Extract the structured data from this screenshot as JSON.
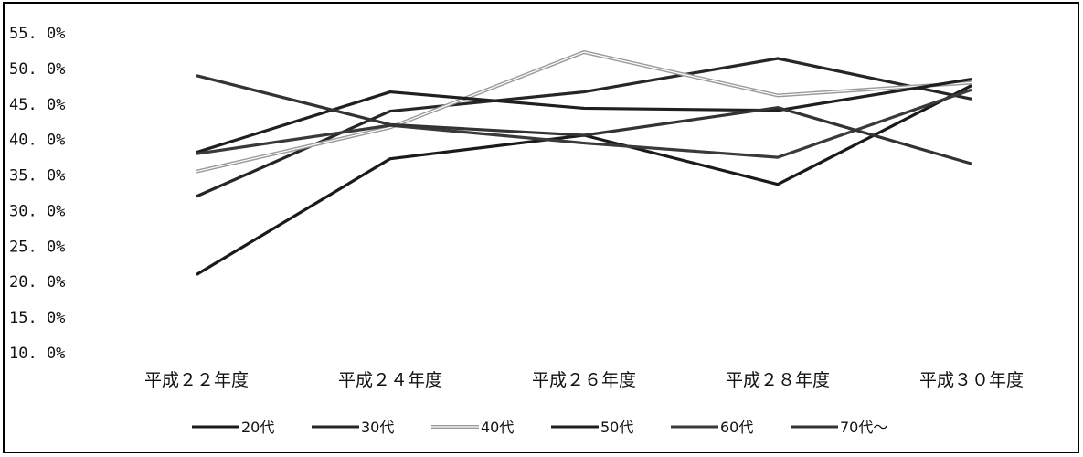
{
  "chart_data": {
    "type": "line",
    "categories": [
      "平成２２年度",
      "平成２４年度",
      "平成２６年度",
      "平成２８年度",
      "平成３０年度"
    ],
    "y_ticks": [
      "10. 0%",
      "15. 0%",
      "20. 0%",
      "25. 0%",
      "30. 0%",
      "35. 0%",
      "40. 0%",
      "45. 0%",
      "50. 0%",
      "55. 0%"
    ],
    "ylim": [
      10,
      55
    ],
    "grid": false,
    "legend_position": "bottom",
    "series": [
      {
        "name": "20代",
        "values": [
          21.0,
          37.3,
          40.6,
          33.7,
          47.6
        ],
        "color": "#1a1a1a",
        "style": "solid"
      },
      {
        "name": "30代",
        "values": [
          32.0,
          44.0,
          46.7,
          51.4,
          45.7
        ],
        "color": "#262626",
        "style": "solid"
      },
      {
        "name": "40代",
        "values": [
          35.5,
          41.7,
          52.3,
          46.2,
          48.0
        ],
        "color": "#9a9a9a",
        "style": "double"
      },
      {
        "name": "50代",
        "values": [
          38.2,
          46.7,
          44.4,
          44.1,
          48.5
        ],
        "color": "#1f1f1f",
        "style": "solid"
      },
      {
        "name": "60代",
        "values": [
          38.0,
          42.0,
          39.5,
          37.5,
          47.0
        ],
        "color": "#3a3a3a",
        "style": "solid"
      },
      {
        "name": "70代～",
        "values": [
          49.0,
          42.1,
          40.6,
          44.5,
          36.6
        ],
        "color": "#333333",
        "style": "solid"
      }
    ]
  }
}
